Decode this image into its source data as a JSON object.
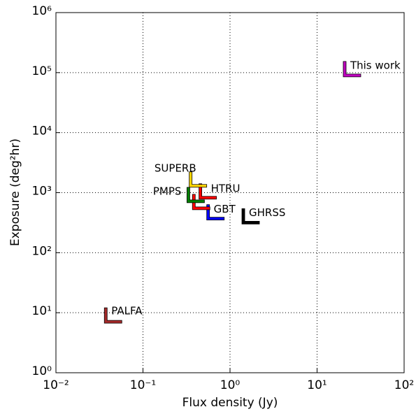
{
  "chart_data": {
    "type": "scatter",
    "x_label": "Flux density (Jy)",
    "y_label": "Exposure (deg²hr)",
    "x_log": true,
    "y_log": true,
    "grid": true,
    "xlim": [
      0.01,
      100
    ],
    "ylim": [
      1,
      1000000
    ],
    "xticks": [
      {
        "value": 0.01,
        "label": "10⁻²"
      },
      {
        "value": 0.1,
        "label": "10⁻¹"
      },
      {
        "value": 1,
        "label": "10⁰"
      },
      {
        "value": 10,
        "label": "10¹"
      },
      {
        "value": 100,
        "label": "10²"
      }
    ],
    "yticks": [
      {
        "value": 1,
        "label": "10⁰"
      },
      {
        "value": 10,
        "label": "10¹"
      },
      {
        "value": 100,
        "label": "10²"
      },
      {
        "value": 1000,
        "label": "10³"
      },
      {
        "value": 10000,
        "label": "10⁴"
      },
      {
        "value": 100000,
        "label": "10⁵"
      },
      {
        "value": 1000000,
        "label": "10⁶"
      }
    ],
    "series": [
      {
        "name": "This work",
        "color": "#c000c0",
        "x": [
          20
        ],
        "values": [
          85000
        ]
      },
      {
        "name": "PALFA",
        "color": "#a52a2a",
        "x": [
          0.036
        ],
        "values": [
          6.7
        ]
      },
      {
        "name": "GHRSS",
        "color": "#000000",
        "x": [
          1.37
        ],
        "values": [
          300
        ]
      },
      {
        "name": "GBT",
        "color": "#0000ff",
        "x": [
          0.54
        ],
        "values": [
          350
        ]
      },
      {
        "name": "HTRU",
        "color": "#ff0000",
        "x": [
          0.44,
          0.37
        ],
        "values": [
          780,
          520
        ]
      },
      {
        "name": "PMPS",
        "color": "#008000",
        "x": [
          0.32
        ],
        "values": [
          680
        ]
      },
      {
        "name": "SUPERB",
        "color": "#ffd700",
        "x": [
          0.34
        ],
        "values": [
          1230
        ]
      }
    ]
  }
}
